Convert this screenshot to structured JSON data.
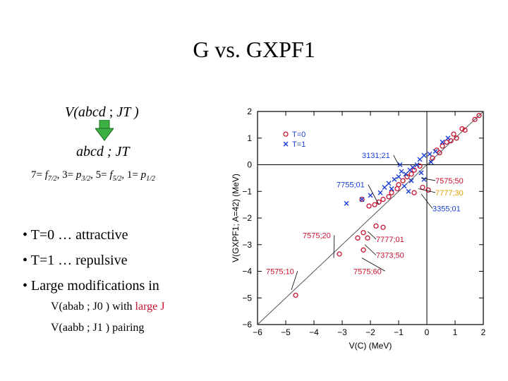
{
  "slide": {
    "title": "G vs. GXPF1",
    "formula": {
      "prefix": "V(abcd ",
      "sep": "; ",
      "suffix": "JT )"
    },
    "label2": "abcd ; JT",
    "orbitals": [
      {
        "num": "7=",
        "l": "f",
        "sub": "7/2"
      },
      {
        "num": "3=",
        "l": "p",
        "sub": "3/2"
      },
      {
        "num": "5=",
        "l": "f",
        "sub": "5/2"
      },
      {
        "num": "1=",
        "l": "p",
        "sub": "1/2"
      }
    ],
    "bullets": [
      "• T=0  … attractive",
      "• T=1  … repulsive",
      "• Large modifications in"
    ],
    "sub1": {
      "pre": "V(abab ; J0 ) with ",
      "highlight": "large J"
    },
    "sub2": "V(aabb ; J1 ) pairing",
    "colors": {
      "red": "#c8102e",
      "blue": "#1a3fd0",
      "arrow": "#3cb043",
      "orange": "#e0a000"
    }
  },
  "chart_data": {
    "type": "scatter",
    "xlabel": "V(C) (MeV)",
    "ylabel": "V(GXPF1; A=42) (MeV)",
    "xlim": [
      -6,
      2
    ],
    "ylim": [
      -6,
      2
    ],
    "xticks": [
      "−6",
      "−5",
      "−4",
      "−3",
      "−2",
      "−1",
      "0",
      "1",
      "2"
    ],
    "yticks": [
      "2",
      "1",
      "0",
      "−1",
      "−2",
      "−3",
      "−4",
      "−5",
      "−6"
    ],
    "legend": {
      "position": "top-left",
      "t0": "T=0",
      "t1": "T=1"
    },
    "annotations": [
      {
        "text": "3131;21",
        "x": -2.3,
        "y": 0.25,
        "tx": -1.0,
        "ty": 0.0,
        "color": "#1a3fd0"
      },
      {
        "text": "7575;50",
        "x": 0.3,
        "y": -0.7,
        "tx": -0.2,
        "ty": -0.5,
        "color": "#c8102e"
      },
      {
        "text": "7777;30",
        "x": 0.3,
        "y": -1.15,
        "tx": -0.3,
        "ty": -0.9,
        "color": "#e0a000"
      },
      {
        "text": "7755;01",
        "x": -3.2,
        "y": -0.85,
        "tx": -1.7,
        "ty": -1.5,
        "color": "#1a3fd0"
      },
      {
        "text": "3355;01",
        "x": 0.2,
        "y": -1.75,
        "tx": -0.2,
        "ty": -1.1,
        "color": "#1a3fd0"
      },
      {
        "text": "7575;20",
        "x": -4.4,
        "y": -2.75,
        "tx": -3.3,
        "ty": -3.5,
        "color": "#c8102e"
      },
      {
        "text": "7777;01",
        "x": -1.8,
        "y": -2.9,
        "tx": -2.1,
        "ty": -2.5,
        "color": "#c8102e"
      },
      {
        "text": "7373;50",
        "x": -1.8,
        "y": -3.5,
        "tx": -2.2,
        "ty": -3.0,
        "color": "#c8102e"
      },
      {
        "text": "7575;60",
        "x": -2.6,
        "y": -4.1,
        "tx": -2.3,
        "ty": -3.5,
        "color": "#c8102e"
      },
      {
        "text": "7575;10",
        "x": -5.7,
        "y": -4.1,
        "tx": -4.8,
        "ty": -4.7,
        "color": "#c8102e"
      }
    ],
    "series": [
      {
        "name": "T=0",
        "marker": "circle",
        "points": [
          [
            1.85,
            1.85
          ],
          [
            1.7,
            1.7
          ],
          [
            1.35,
            1.3
          ],
          [
            1.25,
            1.35
          ],
          [
            1.05,
            1.0
          ],
          [
            0.95,
            1.15
          ],
          [
            0.85,
            0.9
          ],
          [
            0.7,
            0.85
          ],
          [
            0.55,
            0.7
          ],
          [
            0.45,
            0.45
          ],
          [
            0.35,
            0.55
          ],
          [
            0.2,
            0.25
          ],
          [
            -0.25,
            -0.05
          ],
          [
            -0.45,
            -0.2
          ],
          [
            -0.55,
            -0.35
          ],
          [
            -0.7,
            -0.45
          ],
          [
            -0.85,
            -0.6
          ],
          [
            -1.0,
            -0.75
          ],
          [
            -1.05,
            -0.9
          ],
          [
            -1.25,
            -1.05
          ],
          [
            -1.35,
            -1.2
          ],
          [
            -1.55,
            -1.3
          ],
          [
            -1.7,
            -1.4
          ],
          [
            -1.85,
            -1.5
          ],
          [
            -2.05,
            -1.55
          ],
          [
            -2.3,
            -1.3
          ],
          [
            -0.45,
            -1.05
          ],
          [
            -0.15,
            -0.85
          ],
          [
            0.05,
            -0.95
          ],
          [
            -1.55,
            -2.35
          ],
          [
            -1.8,
            -2.3
          ],
          [
            -2.25,
            -2.55
          ],
          [
            -2.1,
            -2.75
          ],
          [
            -2.45,
            -2.75
          ],
          [
            -2.25,
            -3.2
          ],
          [
            -3.1,
            -3.35
          ],
          [
            -4.65,
            -4.9
          ]
        ]
      },
      {
        "name": "T=1",
        "marker": "x",
        "points": [
          [
            0.75,
            1.0
          ],
          [
            0.55,
            0.85
          ],
          [
            0.3,
            0.5
          ],
          [
            0.1,
            0.4
          ],
          [
            0.15,
            0.1
          ],
          [
            -0.1,
            0.35
          ],
          [
            -0.25,
            0.2
          ],
          [
            -0.35,
            0.0
          ],
          [
            -0.5,
            -0.1
          ],
          [
            -0.2,
            -0.3
          ],
          [
            -0.6,
            -0.2
          ],
          [
            -0.75,
            -0.35
          ],
          [
            -0.9,
            -0.25
          ],
          [
            -1.0,
            -0.45
          ],
          [
            -0.55,
            -0.6
          ],
          [
            -1.15,
            -0.55
          ],
          [
            -1.35,
            -0.7
          ],
          [
            -1.25,
            -0.9
          ],
          [
            -0.8,
            -0.8
          ],
          [
            -1.5,
            -0.85
          ],
          [
            -1.65,
            -1.05
          ],
          [
            -0.65,
            -1.0
          ],
          [
            -2.0,
            -1.15
          ],
          [
            -2.3,
            -1.3
          ],
          [
            -2.85,
            -1.45
          ],
          [
            -0.1,
            -0.55
          ],
          [
            -0.95,
            0.0
          ]
        ]
      }
    ]
  }
}
